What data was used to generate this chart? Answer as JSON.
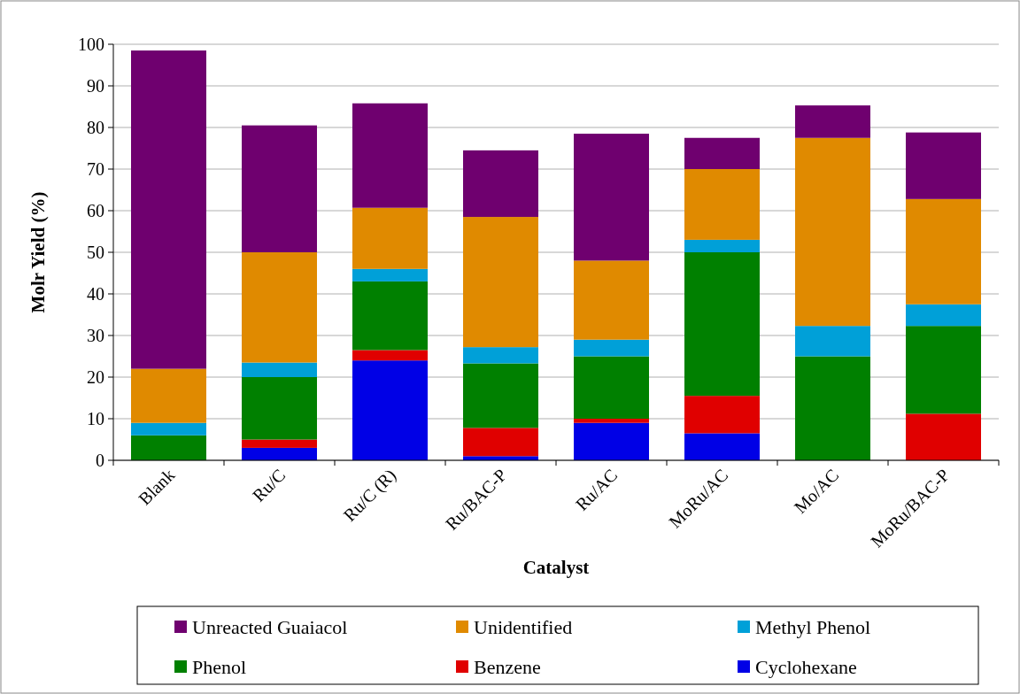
{
  "chart_data": {
    "type": "bar",
    "stacked": true,
    "xlabel": "Catalyst",
    "ylabel": "Molr Yield (%)",
    "categories": [
      "Blank",
      "Ru/C",
      "Ru/C (R)",
      "Ru/BAC-P",
      "Ru/AC",
      "MoRu/AC",
      "Mo/AC",
      "MoRu/BAC-P"
    ],
    "series": [
      {
        "name": "Cyclohexane",
        "color": "#0000e6",
        "values": [
          0,
          3,
          24,
          1,
          9,
          6.5,
          0,
          0
        ]
      },
      {
        "name": "Benzene",
        "color": "#e00000",
        "values": [
          0,
          2,
          2.5,
          6.8,
          1,
          9,
          0,
          11.2
        ]
      },
      {
        "name": "Phenol",
        "color": "#008000",
        "values": [
          6,
          15,
          16.5,
          15.5,
          15,
          34.5,
          25,
          21.1
        ]
      },
      {
        "name": "Methyl Phenol",
        "color": "#00a0d8",
        "values": [
          3,
          3.5,
          3,
          3.9,
          4,
          3,
          7.3,
          5.2
        ]
      },
      {
        "name": "Unidentified",
        "color": "#e08a00",
        "values": [
          13,
          26.5,
          14.7,
          31.3,
          19,
          17,
          45.2,
          25.3
        ]
      },
      {
        "name": "Unreacted Guaiacol",
        "color": "#6f006f",
        "values": [
          76.5,
          30.5,
          25.1,
          16,
          30.5,
          7.5,
          7.8,
          16
        ]
      }
    ],
    "ylim": [
      0,
      100
    ],
    "yticks": [
      0,
      10,
      20,
      30,
      40,
      50,
      60,
      70,
      80,
      90,
      100
    ],
    "grid": "y",
    "legend": "bottom"
  }
}
